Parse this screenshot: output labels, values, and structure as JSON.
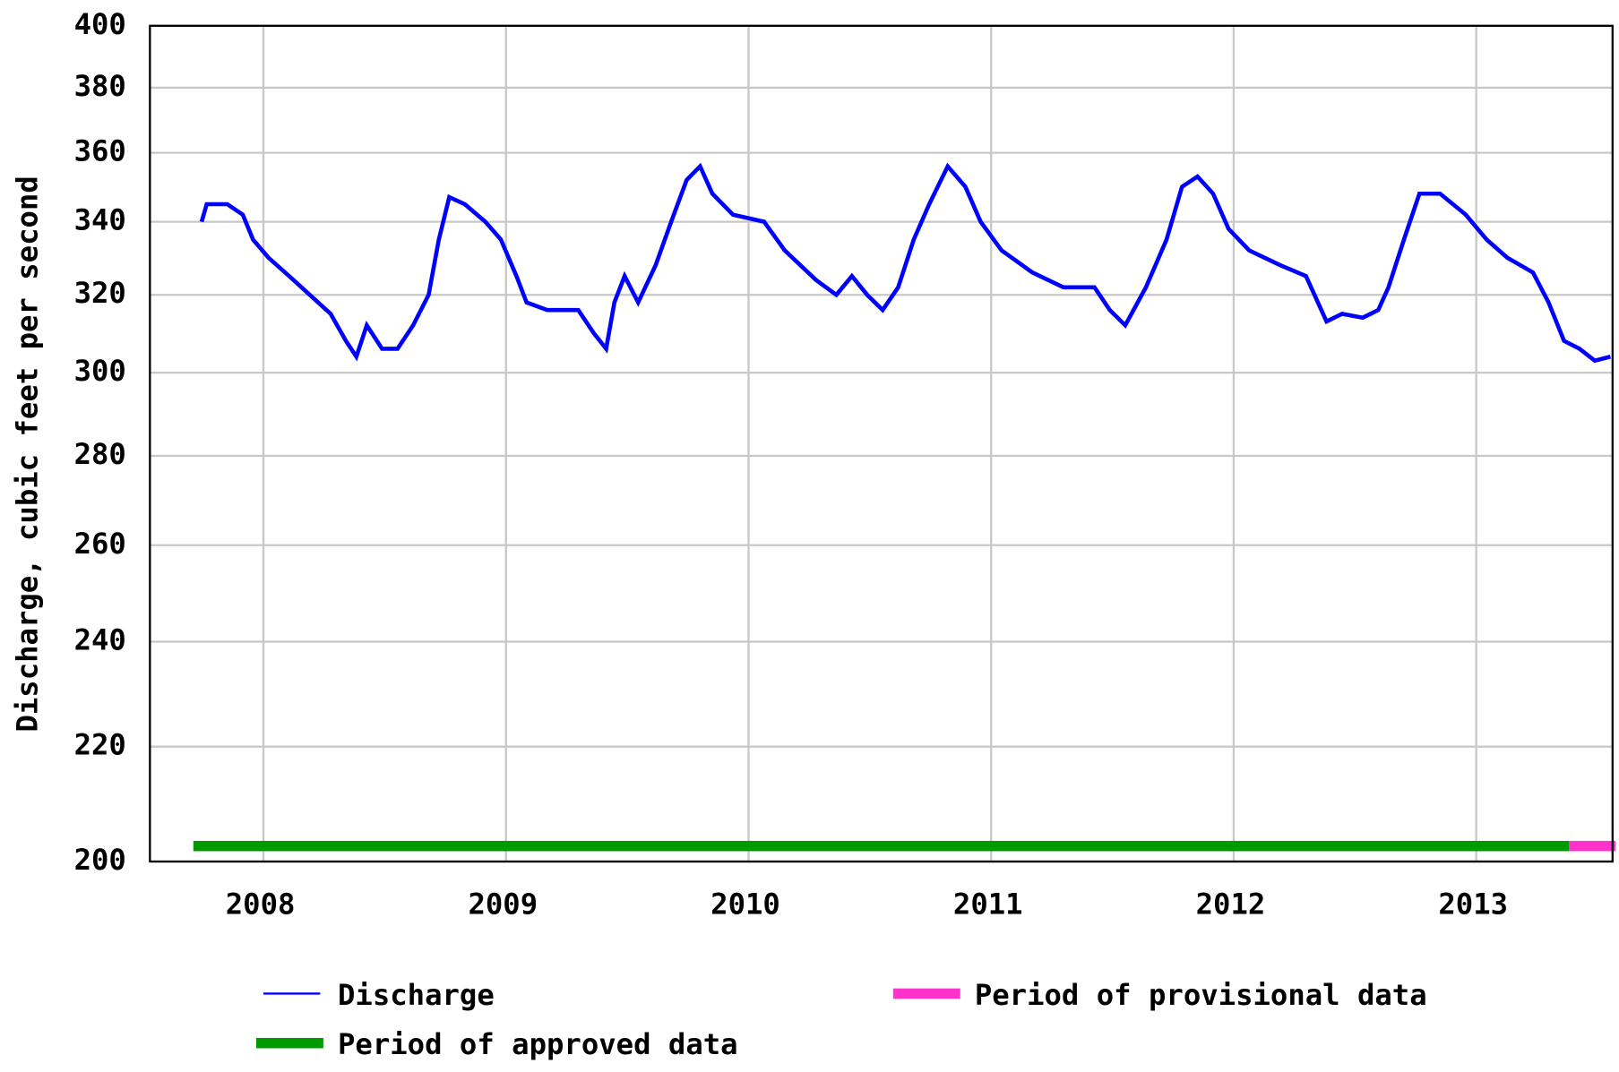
{
  "chart_data": {
    "type": "line",
    "ylabel": "Discharge, cubic feet per second",
    "log_y": true,
    "grid": true,
    "ylim": [
      200,
      400
    ],
    "yticks": [
      200,
      220,
      240,
      260,
      280,
      300,
      320,
      340,
      360,
      380,
      400
    ],
    "xlim": [
      2007.532,
      2013.562
    ],
    "xticks": [
      2008,
      2009,
      2010,
      2011,
      2012,
      2013
    ],
    "x": [
      2007.745,
      2007.766,
      2007.851,
      2007.915,
      2007.957,
      2008.021,
      2008.106,
      2008.191,
      2008.277,
      2008.34,
      2008.383,
      2008.426,
      2008.489,
      2008.553,
      2008.617,
      2008.681,
      2008.723,
      2008.766,
      2008.83,
      2008.915,
      2008.979,
      2009.043,
      2009.085,
      2009.17,
      2009.298,
      2009.362,
      2009.413,
      2009.447,
      2009.489,
      2009.545,
      2009.617,
      2009.681,
      2009.745,
      2009.8,
      2009.851,
      2009.936,
      2010.064,
      2010.149,
      2010.277,
      2010.362,
      2010.426,
      2010.489,
      2010.553,
      2010.617,
      2010.681,
      2010.745,
      2010.821,
      2010.894,
      2010.957,
      2011.043,
      2011.17,
      2011.298,
      2011.426,
      2011.489,
      2011.553,
      2011.638,
      2011.723,
      2011.787,
      2011.851,
      2011.915,
      2011.979,
      2012.064,
      2012.191,
      2012.298,
      2012.383,
      2012.447,
      2012.532,
      2012.596,
      2012.638,
      2012.702,
      2012.766,
      2012.851,
      2012.957,
      2013.043,
      2013.128,
      2013.234,
      2013.298,
      2013.362,
      2013.426,
      2013.489,
      2013.553
    ],
    "series": [
      {
        "name": "Discharge",
        "color": "#0000ff",
        "values": [
          340,
          345,
          345,
          342,
          335,
          330,
          325,
          320,
          315,
          308,
          304,
          312,
          306,
          306,
          312,
          320,
          335,
          347,
          345,
          340,
          335,
          325,
          318,
          316,
          316,
          310,
          306,
          318,
          325,
          318,
          328,
          340,
          352,
          356,
          348,
          342,
          340,
          332,
          324,
          320,
          325,
          320,
          316,
          322,
          335,
          345,
          356,
          350,
          340,
          332,
          326,
          322,
          322,
          316,
          312,
          322,
          335,
          350,
          353,
          348,
          338,
          332,
          328,
          325,
          313,
          315,
          314,
          316,
          322,
          335,
          348,
          348,
          342,
          335,
          330,
          326,
          318,
          308,
          306,
          303,
          304
        ]
      }
    ],
    "periods": [
      {
        "name": "Period of approved data",
        "color": "#009900",
        "start": 2007.711,
        "end": 2013.383
      },
      {
        "name": "Period of provisional data",
        "color": "#ff33cc",
        "start": 2013.383,
        "end": 2013.574
      }
    ]
  }
}
